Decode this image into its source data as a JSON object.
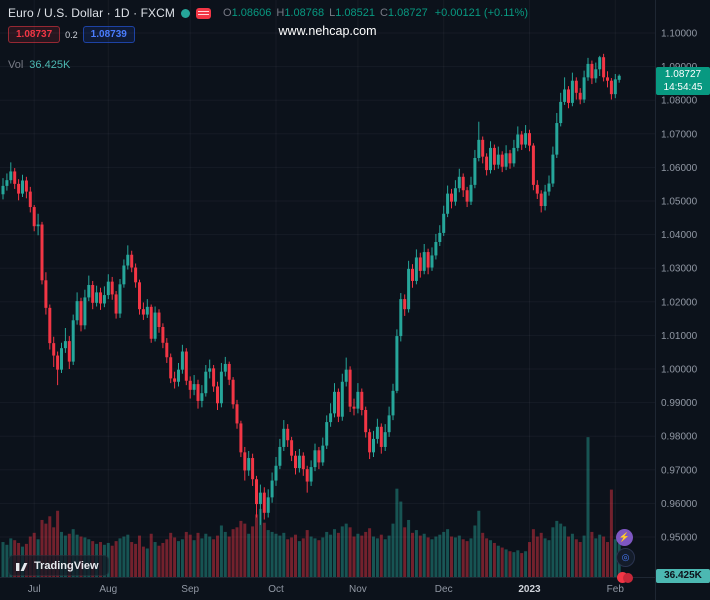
{
  "header": {
    "symbol_title": "Euro / U.S. Dollar · 1D · FXCM",
    "ohlc": {
      "open_label": "O",
      "open": "1.08606",
      "high_label": "H",
      "high": "1.08768",
      "low_label": "L",
      "low": "1.08521",
      "close_label": "C",
      "close": "1.08727",
      "change": "+0.00121 (+0.11%)"
    },
    "sell_price": "1.08737",
    "spread": "0.2",
    "buy_price": "1.08739",
    "vol_label": "Vol",
    "vol_value": "36.425K"
  },
  "watermark": "www.nehcap.com",
  "price_scale": {
    "last_price": "1.08727",
    "countdown": "14:54:45",
    "vol_badge": "36.425K"
  },
  "logo": {
    "text": "TradingView"
  },
  "colors": {
    "background": "#0c121b",
    "up": "#26a69a",
    "down": "#f23645",
    "badge": "#089981",
    "vol_accent": "#4cb8b2",
    "grid": "rgba(150,160,175,0.07)",
    "axis_text": "#9198a4",
    "border": "#1f2733"
  },
  "chart_data": {
    "type": "candlestick",
    "title": "Euro / U.S. Dollar",
    "symbol": "EURUSD",
    "timeframe": "1D",
    "exchange": "FXCM",
    "ylim": [
      0.938,
      1.1
    ],
    "grid": true,
    "volume_pane": true,
    "price_axis": [
      "1.10000",
      "1.09000",
      "1.08000",
      "1.07000",
      "1.06000",
      "1.05000",
      "1.04000",
      "1.03000",
      "1.02000",
      "1.01000",
      "1.00000",
      "0.99000",
      "0.98000",
      "0.97000",
      "0.96000",
      "0.95000"
    ],
    "months": [
      {
        "label": "Jul",
        "idx": 8
      },
      {
        "label": "Aug",
        "idx": 27
      },
      {
        "label": "Sep",
        "idx": 48
      },
      {
        "label": "Oct",
        "idx": 70
      },
      {
        "label": "Nov",
        "idx": 91
      },
      {
        "label": "Dec",
        "idx": 113
      },
      {
        "label": "2023",
        "idx": 135,
        "year": true
      },
      {
        "label": "Feb",
        "idx": 157
      }
    ],
    "candles_format": [
      "open",
      "high",
      "low",
      "close",
      "volume_k"
    ],
    "candles": [
      [
        1.052,
        1.0568,
        1.0505,
        1.0545,
        38
      ],
      [
        1.0545,
        1.0582,
        1.0531,
        1.0562,
        35
      ],
      [
        1.0562,
        1.0615,
        1.0552,
        1.0588,
        42
      ],
      [
        1.0588,
        1.0598,
        1.0536,
        1.0551,
        40
      ],
      [
        1.0551,
        1.0565,
        1.0502,
        1.0522,
        37
      ],
      [
        1.0522,
        1.0578,
        1.0512,
        1.0561,
        33
      ],
      [
        1.0561,
        1.0572,
        1.0508,
        1.0528,
        36
      ],
      [
        1.0528,
        1.0542,
        1.0466,
        1.0482,
        44
      ],
      [
        1.0482,
        1.0488,
        1.041,
        1.0425,
        48
      ],
      [
        1.0425,
        1.0462,
        1.0398,
        1.043,
        41
      ],
      [
        1.043,
        1.0438,
        1.0252,
        1.0264,
        62
      ],
      [
        1.0264,
        1.0288,
        1.0162,
        1.0182,
        58
      ],
      [
        1.0182,
        1.0192,
        1.0058,
        1.0077,
        66
      ],
      [
        1.0077,
        1.0096,
        1.0006,
        1.004,
        54
      ],
      [
        1.004,
        1.0052,
        0.9952,
        0.9998,
        72
      ],
      [
        0.9998,
        1.0078,
        0.9988,
        1.0062,
        49
      ],
      [
        1.0062,
        1.0122,
        1.0048,
        1.0083,
        45
      ],
      [
        1.0083,
        1.0098,
        1.0,
        1.0022,
        47
      ],
      [
        1.0022,
        1.0162,
        1.0012,
        1.0145,
        52
      ],
      [
        1.0145,
        1.0228,
        1.0132,
        1.0202,
        46
      ],
      [
        1.0202,
        1.0212,
        1.0112,
        1.013,
        44
      ],
      [
        1.013,
        1.0236,
        1.0118,
        1.0213,
        43
      ],
      [
        1.0213,
        1.0278,
        1.0202,
        1.025,
        41
      ],
      [
        1.025,
        1.0262,
        1.0178,
        1.0197,
        39
      ],
      [
        1.0197,
        1.0248,
        1.0186,
        1.0228,
        36
      ],
      [
        1.0228,
        1.0242,
        1.0176,
        1.0195,
        38
      ],
      [
        1.0195,
        1.0246,
        1.0184,
        1.022,
        35
      ],
      [
        1.022,
        1.0282,
        1.0208,
        1.026,
        37
      ],
      [
        1.026,
        1.0274,
        1.0206,
        1.0222,
        34
      ],
      [
        1.0222,
        1.0232,
        1.015,
        1.0165,
        39
      ],
      [
        1.0165,
        1.0268,
        1.0152,
        1.0252,
        42
      ],
      [
        1.0252,
        1.0326,
        1.0242,
        1.0308,
        44
      ],
      [
        1.0308,
        1.0368,
        1.0296,
        1.034,
        46
      ],
      [
        1.034,
        1.0352,
        1.0288,
        1.0302,
        38
      ],
      [
        1.0302,
        1.0314,
        1.0242,
        1.0258,
        36
      ],
      [
        1.0258,
        1.0266,
        1.0162,
        1.0178,
        45
      ],
      [
        1.0178,
        1.0198,
        1.0146,
        1.0162,
        33
      ],
      [
        1.0162,
        1.0208,
        1.0152,
        1.0185,
        31
      ],
      [
        1.0185,
        1.0192,
        1.0078,
        1.009,
        47
      ],
      [
        1.009,
        1.0186,
        1.0082,
        1.0168,
        38
      ],
      [
        1.0168,
        1.0178,
        1.0108,
        1.0125,
        34
      ],
      [
        1.0125,
        1.0136,
        1.0062,
        1.0078,
        37
      ],
      [
        1.0078,
        1.0092,
        1.0018,
        1.0035,
        41
      ],
      [
        1.0035,
        1.0046,
        0.9958,
        0.9972,
        48
      ],
      [
        0.9972,
        0.9992,
        0.9942,
        0.9962,
        43
      ],
      [
        0.9962,
        1.0018,
        0.9948,
        0.9998,
        39
      ],
      [
        0.9998,
        1.0072,
        0.9986,
        1.0052,
        41
      ],
      [
        1.0052,
        1.0062,
        0.9952,
        0.9965,
        49
      ],
      [
        0.9965,
        0.9978,
        0.9912,
        0.9938,
        46
      ],
      [
        0.9938,
        0.9982,
        0.9922,
        0.9955,
        40
      ],
      [
        0.9955,
        0.9968,
        0.9882,
        0.9905,
        48
      ],
      [
        0.9905,
        0.9952,
        0.9886,
        0.9928,
        42
      ],
      [
        0.9928,
        1.0012,
        0.9918,
        0.9992,
        47
      ],
      [
        0.9992,
        1.0028,
        0.9972,
        1.0002,
        44
      ],
      [
        1.0002,
        1.0012,
        0.9932,
        0.9948,
        41
      ],
      [
        0.9948,
        0.9962,
        0.9878,
        0.9898,
        45
      ],
      [
        0.9898,
        1.0018,
        0.9886,
        0.9992,
        56
      ],
      [
        0.9992,
        1.0036,
        0.9978,
        1.0015,
        49
      ],
      [
        1.0015,
        1.0022,
        0.9952,
        0.9968,
        44
      ],
      [
        0.9968,
        0.9976,
        0.9882,
        0.9895,
        52
      ],
      [
        0.9895,
        0.9908,
        0.9822,
        0.9838,
        54
      ],
      [
        0.9838,
        0.9846,
        0.9738,
        0.9752,
        61
      ],
      [
        0.9752,
        0.9768,
        0.9668,
        0.9698,
        58
      ],
      [
        0.9698,
        0.9756,
        0.9682,
        0.9735,
        47
      ],
      [
        0.9735,
        0.9748,
        0.9652,
        0.9672,
        55
      ],
      [
        0.9672,
        0.9682,
        0.9558,
        0.9598,
        68
      ],
      [
        0.9598,
        0.9656,
        0.9536,
        0.9632,
        74
      ],
      [
        0.9632,
        0.9648,
        0.9552,
        0.9572,
        59
      ],
      [
        0.9572,
        0.9642,
        0.9558,
        0.9618,
        51
      ],
      [
        0.9618,
        0.9692,
        0.9602,
        0.9668,
        49
      ],
      [
        0.9668,
        0.9738,
        0.9652,
        0.9712,
        47
      ],
      [
        0.9712,
        0.9792,
        0.9702,
        0.9768,
        45
      ],
      [
        0.9768,
        0.9848,
        0.9756,
        0.9822,
        48
      ],
      [
        0.9822,
        0.9836,
        0.9768,
        0.9788,
        41
      ],
      [
        0.9788,
        0.9798,
        0.9726,
        0.9742,
        43
      ],
      [
        0.9742,
        0.9756,
        0.9686,
        0.9705,
        46
      ],
      [
        0.9705,
        0.9762,
        0.9692,
        0.9742,
        39
      ],
      [
        0.9742,
        0.9752,
        0.9682,
        0.9702,
        42
      ],
      [
        0.9702,
        0.9712,
        0.9632,
        0.9665,
        51
      ],
      [
        0.9665,
        0.9728,
        0.9652,
        0.9708,
        44
      ],
      [
        0.9708,
        0.9778,
        0.9696,
        0.9758,
        42
      ],
      [
        0.9758,
        0.9768,
        0.9702,
        0.9722,
        40
      ],
      [
        0.9722,
        0.9796,
        0.9712,
        0.9772,
        43
      ],
      [
        0.9772,
        0.9862,
        0.9762,
        0.9842,
        49
      ],
      [
        0.9842,
        0.9898,
        0.9828,
        0.9868,
        46
      ],
      [
        0.9868,
        0.9958,
        0.9856,
        0.9932,
        52
      ],
      [
        0.9932,
        0.9942,
        0.9842,
        0.9858,
        48
      ],
      [
        0.9858,
        0.9986,
        0.9846,
        0.9962,
        55
      ],
      [
        0.9962,
        1.0034,
        0.9948,
        0.9998,
        58
      ],
      [
        0.9998,
        1.0008,
        0.9872,
        0.9888,
        54
      ],
      [
        0.9888,
        0.9912,
        0.9862,
        0.9882,
        44
      ],
      [
        0.9882,
        0.9958,
        0.9868,
        0.9932,
        47
      ],
      [
        0.9932,
        0.9942,
        0.9862,
        0.9878,
        45
      ],
      [
        0.9878,
        0.9888,
        0.9796,
        0.9812,
        49
      ],
      [
        0.9812,
        0.9822,
        0.9732,
        0.9752,
        53
      ],
      [
        0.9752,
        0.9816,
        0.9738,
        0.9792,
        44
      ],
      [
        0.9792,
        0.9852,
        0.9778,
        0.9828,
        42
      ],
      [
        0.9828,
        0.9838,
        0.9748,
        0.9768,
        46
      ],
      [
        0.9768,
        0.9836,
        0.9756,
        0.9812,
        41
      ],
      [
        0.9812,
        0.9888,
        0.9798,
        0.9862,
        45
      ],
      [
        0.9862,
        0.9956,
        0.9848,
        0.9935,
        58
      ],
      [
        0.9935,
        1.0118,
        0.9928,
        1.0098,
        96
      ],
      [
        1.0098,
        1.0226,
        1.0082,
        1.0208,
        82
      ],
      [
        1.0208,
        1.0222,
        1.0158,
        1.0178,
        54
      ],
      [
        1.0178,
        1.0322,
        1.0168,
        1.0298,
        62
      ],
      [
        1.0298,
        1.0312,
        1.0242,
        1.0262,
        48
      ],
      [
        1.0262,
        1.0356,
        1.0252,
        1.0332,
        51
      ],
      [
        1.0332,
        1.0346,
        1.0272,
        1.0292,
        45
      ],
      [
        1.0292,
        1.0372,
        1.0282,
        1.0348,
        47
      ],
      [
        1.0348,
        1.0358,
        1.0282,
        1.0302,
        43
      ],
      [
        1.0302,
        1.0362,
        1.0292,
        1.0338,
        41
      ],
      [
        1.0338,
        1.0402,
        1.0326,
        1.0378,
        44
      ],
      [
        1.0378,
        1.0428,
        1.0366,
        1.0405,
        46
      ],
      [
        1.0405,
        1.0486,
        1.0396,
        1.0462,
        49
      ],
      [
        1.0462,
        1.0546,
        1.0452,
        1.0522,
        52
      ],
      [
        1.0522,
        1.0536,
        1.0478,
        1.0498,
        44
      ],
      [
        1.0498,
        1.0562,
        1.0486,
        1.0538,
        43
      ],
      [
        1.0538,
        1.0596,
        1.0526,
        1.0572,
        45
      ],
      [
        1.0572,
        1.0582,
        1.0512,
        1.0532,
        41
      ],
      [
        1.0532,
        1.0542,
        1.0482,
        1.0498,
        39
      ],
      [
        1.0498,
        1.0572,
        1.0488,
        1.0548,
        42
      ],
      [
        1.0548,
        1.0652,
        1.0538,
        1.0628,
        56
      ],
      [
        1.0628,
        1.0736,
        1.0618,
        1.0682,
        72
      ],
      [
        1.0682,
        1.0692,
        1.0612,
        1.0632,
        48
      ],
      [
        1.0632,
        1.0642,
        1.0576,
        1.0592,
        42
      ],
      [
        1.0592,
        1.0678,
        1.0582,
        1.0658,
        40
      ],
      [
        1.0658,
        1.0668,
        1.0592,
        1.0608,
        37
      ],
      [
        1.0608,
        1.0662,
        1.0596,
        1.0638,
        34
      ],
      [
        1.0638,
        1.0648,
        1.0586,
        1.0602,
        32
      ],
      [
        1.0602,
        1.0666,
        1.0592,
        1.0642,
        30
      ],
      [
        1.0642,
        1.0652,
        1.0596,
        1.0612,
        28
      ],
      [
        1.0612,
        1.0682,
        1.0602,
        1.0658,
        27
      ],
      [
        1.0658,
        1.0722,
        1.0648,
        1.0698,
        29
      ],
      [
        1.0698,
        1.0708,
        1.0652,
        1.0668,
        26
      ],
      [
        1.0668,
        1.0726,
        1.0658,
        1.0702,
        28
      ],
      [
        1.0702,
        1.0712,
        1.0648,
        1.0665,
        38
      ],
      [
        1.0665,
        1.0672,
        1.0532,
        1.0548,
        52
      ],
      [
        1.0548,
        1.0562,
        1.0506,
        1.0522,
        44
      ],
      [
        1.0522,
        1.0532,
        1.0466,
        1.0485,
        48
      ],
      [
        1.0485,
        1.0548,
        1.0472,
        1.0528,
        42
      ],
      [
        1.0528,
        1.0576,
        1.0516,
        1.0552,
        40
      ],
      [
        1.0552,
        1.0662,
        1.0542,
        1.0638,
        54
      ],
      [
        1.0638,
        1.0762,
        1.0628,
        1.0732,
        61
      ],
      [
        1.0732,
        1.0822,
        1.0722,
        1.0795,
        58
      ],
      [
        1.0795,
        1.0868,
        1.0786,
        1.0832,
        55
      ],
      [
        1.0832,
        1.0842,
        1.0776,
        1.0792,
        44
      ],
      [
        1.0792,
        1.0882,
        1.0782,
        1.0858,
        47
      ],
      [
        1.0858,
        1.0868,
        1.0802,
        1.0822,
        41
      ],
      [
        1.0822,
        1.0836,
        1.0788,
        1.0802,
        38
      ],
      [
        1.0802,
        1.0888,
        1.0792,
        1.0868,
        45
      ],
      [
        1.0868,
        1.0926,
        1.0858,
        1.0908,
        152
      ],
      [
        1.0908,
        1.0918,
        1.0848,
        1.0865,
        49
      ],
      [
        1.0865,
        1.0912,
        1.0852,
        1.0892,
        42
      ],
      [
        1.0892,
        1.0932,
        1.0872,
        1.0928,
        46
      ],
      [
        1.0928,
        1.0938,
        1.0856,
        1.0868,
        44
      ],
      [
        1.0868,
        1.0886,
        1.0838,
        1.0858,
        38
      ],
      [
        1.0858,
        1.0866,
        1.0802,
        1.0818,
        95
      ],
      [
        1.0818,
        1.0878,
        1.0806,
        1.0862,
        41
      ],
      [
        1.08606,
        1.08768,
        1.08521,
        1.08727,
        36.4
      ]
    ]
  }
}
